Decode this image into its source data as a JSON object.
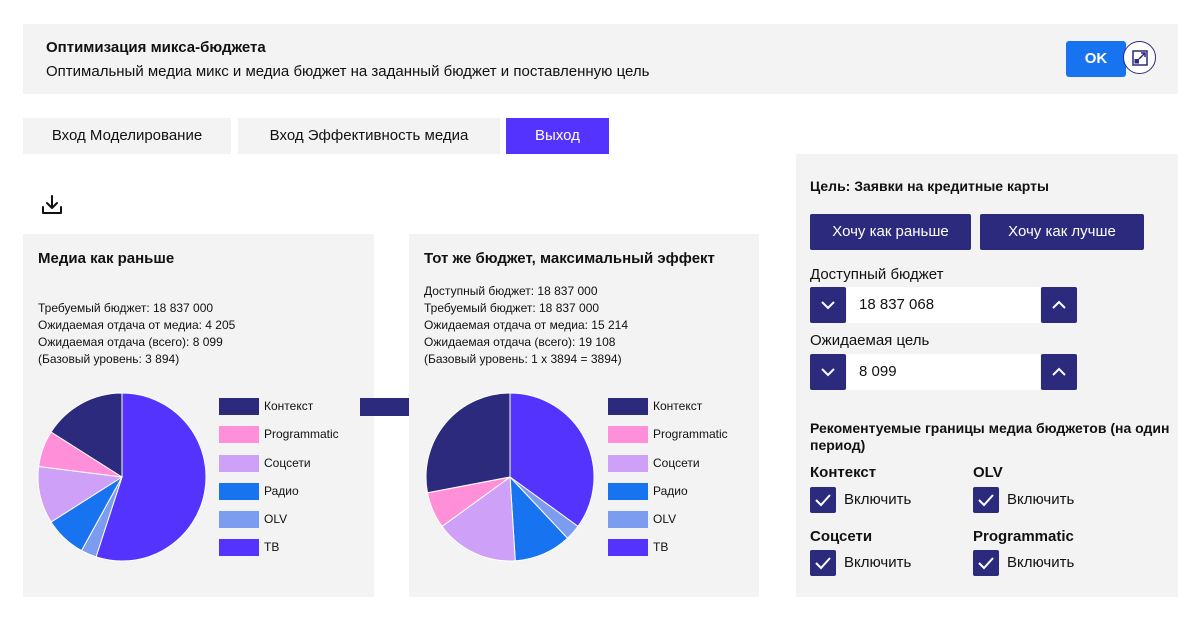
{
  "header": {
    "title": "Оптимизация микса-бюджета",
    "subtitle": "Оптимальный медиа микс и медиа бюджет на заданный бюджет и поставленную цель",
    "ok_label": "OK"
  },
  "tabs": [
    {
      "label": "Вход Моделирование",
      "active": false
    },
    {
      "label": "Вход Эффективность медиа",
      "active": false
    },
    {
      "label": "Выход",
      "active": true
    }
  ],
  "colors": {
    "accent": "#5533ff",
    "dark": "#2b2a7c",
    "ok_blue": "#1873f0"
  },
  "legend_items": [
    {
      "label": "Контекст",
      "color": "#2b2a7c"
    },
    {
      "label": "Programmatic",
      "color": "#ff8fd8"
    },
    {
      "label": "Соцсети",
      "color": "#cfa0f8"
    },
    {
      "label": "Радио",
      "color": "#1873f0"
    },
    {
      "label": "OLV",
      "color": "#7c9cf0"
    },
    {
      "label": "ТВ",
      "color": "#5533ff"
    }
  ],
  "left_card": {
    "title": "Медиа как раньше",
    "stats": [
      "Требуемый бюджет: 18 837 000",
      "Ожидаемая отдача от медиа: 4 205",
      "Ожидаемая отдача (всего): 8 099",
      "(Базовый уровень: 3 894)"
    ]
  },
  "right_card": {
    "title": "Тот же бюджет, максимальный эффект",
    "stats": [
      "Доступный бюджет: 18 837 000",
      "Требуемый бюджет: 18 837 000",
      "Ожидаемая отдача от медиа: 15 214",
      "Ожидаемая отдача (всего): 19 108",
      "(Базовый уровень: 1 x 3894 = 3894)"
    ]
  },
  "chart_data": [
    {
      "type": "pie",
      "categories": [
        "Контекст",
        "Programmatic",
        "Соцсети",
        "Радио",
        "OLV",
        "ТВ"
      ],
      "values": [
        16,
        7,
        11,
        8,
        3,
        55
      ]
    },
    {
      "type": "pie",
      "categories": [
        "Контекст",
        "Programmatic",
        "Соцсети",
        "Радио",
        "OLV",
        "ТВ"
      ],
      "values": [
        28,
        7,
        16,
        11,
        3,
        35
      ]
    }
  ],
  "panel": {
    "goal": "Цель: Заявки на кредитные карты",
    "btn_before": "Хочу как раньше",
    "btn_better": "Хочу как лучше",
    "budget_label": "Доступный бюджет",
    "budget_value": "18 837 068",
    "target_label": "Ожидаемая цель",
    "target_value": "8 099",
    "rec_title": "Рекоментуемые границы медиа бюджетов (на один период)",
    "channels": [
      {
        "name": "Контекст",
        "toggle": "Включить",
        "checked": true
      },
      {
        "name": "OLV",
        "toggle": "Включить",
        "checked": true
      },
      {
        "name": "Соцсети",
        "toggle": "Включить",
        "checked": true
      },
      {
        "name": "Programmatic",
        "toggle": "Включить",
        "checked": true
      }
    ]
  }
}
